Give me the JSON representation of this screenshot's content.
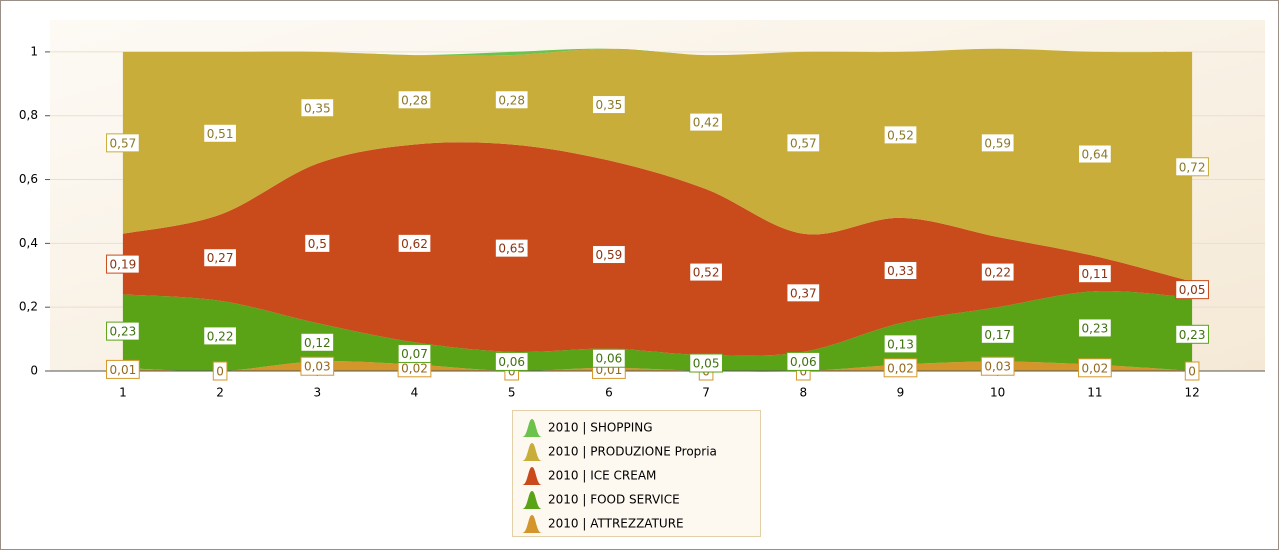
{
  "chart_data": {
    "type": "stacked_area",
    "x": [
      1,
      2,
      3,
      4,
      5,
      6,
      7,
      8,
      9,
      10,
      11,
      12
    ],
    "xlim": [
      0.25,
      12.75
    ],
    "xticks": [
      1,
      2,
      3,
      4,
      5,
      6,
      7,
      8,
      9,
      10,
      11,
      12
    ],
    "ylim": [
      0,
      1.1
    ],
    "yticks": [
      0,
      {
        "value": 0.2,
        "label": "0,2"
      },
      {
        "value": 0.4,
        "label": "0,4"
      },
      {
        "value": 0.6,
        "label": "0,6"
      },
      {
        "value": 0.8,
        "label": "0,8"
      },
      1
    ],
    "grid": true,
    "legend": "bottom",
    "series": [
      {
        "name": "2010 | SHOPPING",
        "color": "#6cc24a",
        "values": [
          0,
          0,
          0,
          0,
          0.01,
          0,
          0,
          0,
          0,
          0,
          0,
          0
        ]
      },
      {
        "name": "2010 | PRODUZIONE Propria",
        "color": "#c8ad3a",
        "values": [
          0.57,
          0.51,
          0.35,
          0.28,
          0.28,
          0.35,
          0.42,
          0.57,
          0.52,
          0.59,
          0.64,
          0.72
        ],
        "value_labels": [
          "0,57",
          "0,51",
          "0,35",
          "0,28",
          "0,28",
          "0,35",
          "0,42",
          "0,57",
          "0,52",
          "0,59",
          "0,64",
          "0,72"
        ]
      },
      {
        "name": "2010 | ICE CREAM",
        "color": "#c94b1b",
        "values": [
          0.19,
          0.27,
          0.5,
          0.62,
          0.65,
          0.59,
          0.52,
          0.37,
          0.33,
          0.22,
          0.11,
          0.05
        ],
        "value_labels": [
          "0,19",
          "0,27",
          "0,5",
          "0,62",
          "0,65",
          "0,59",
          "0,52",
          "0,37",
          "0,33",
          "0,22",
          "0,11",
          "0,05"
        ]
      },
      {
        "name": "2010 | FOOD SERVICE",
        "color": "#5aa317",
        "values": [
          0.23,
          0.22,
          0.12,
          0.07,
          0.06,
          0.06,
          0.05,
          0.06,
          0.13,
          0.17,
          0.23,
          0.23
        ],
        "value_labels": [
          "0,23",
          "0,22",
          "0,12",
          "0,07",
          "0,06",
          "0,06",
          "0,05",
          "0,06",
          "0,13",
          "0,17",
          "0,23",
          "0,23"
        ]
      },
      {
        "name": "2010 | ATTREZZATURE",
        "color": "#d4962a",
        "values": [
          0.01,
          0,
          0.03,
          0.02,
          0,
          0.01,
          0,
          0,
          0.02,
          0.03,
          0.02,
          0
        ],
        "value_labels": [
          "0,01",
          "0",
          "0,03",
          "0,02",
          "0",
          "0,01",
          "0",
          "0",
          "0,02",
          "0,03",
          "0,02",
          "0"
        ]
      }
    ]
  }
}
